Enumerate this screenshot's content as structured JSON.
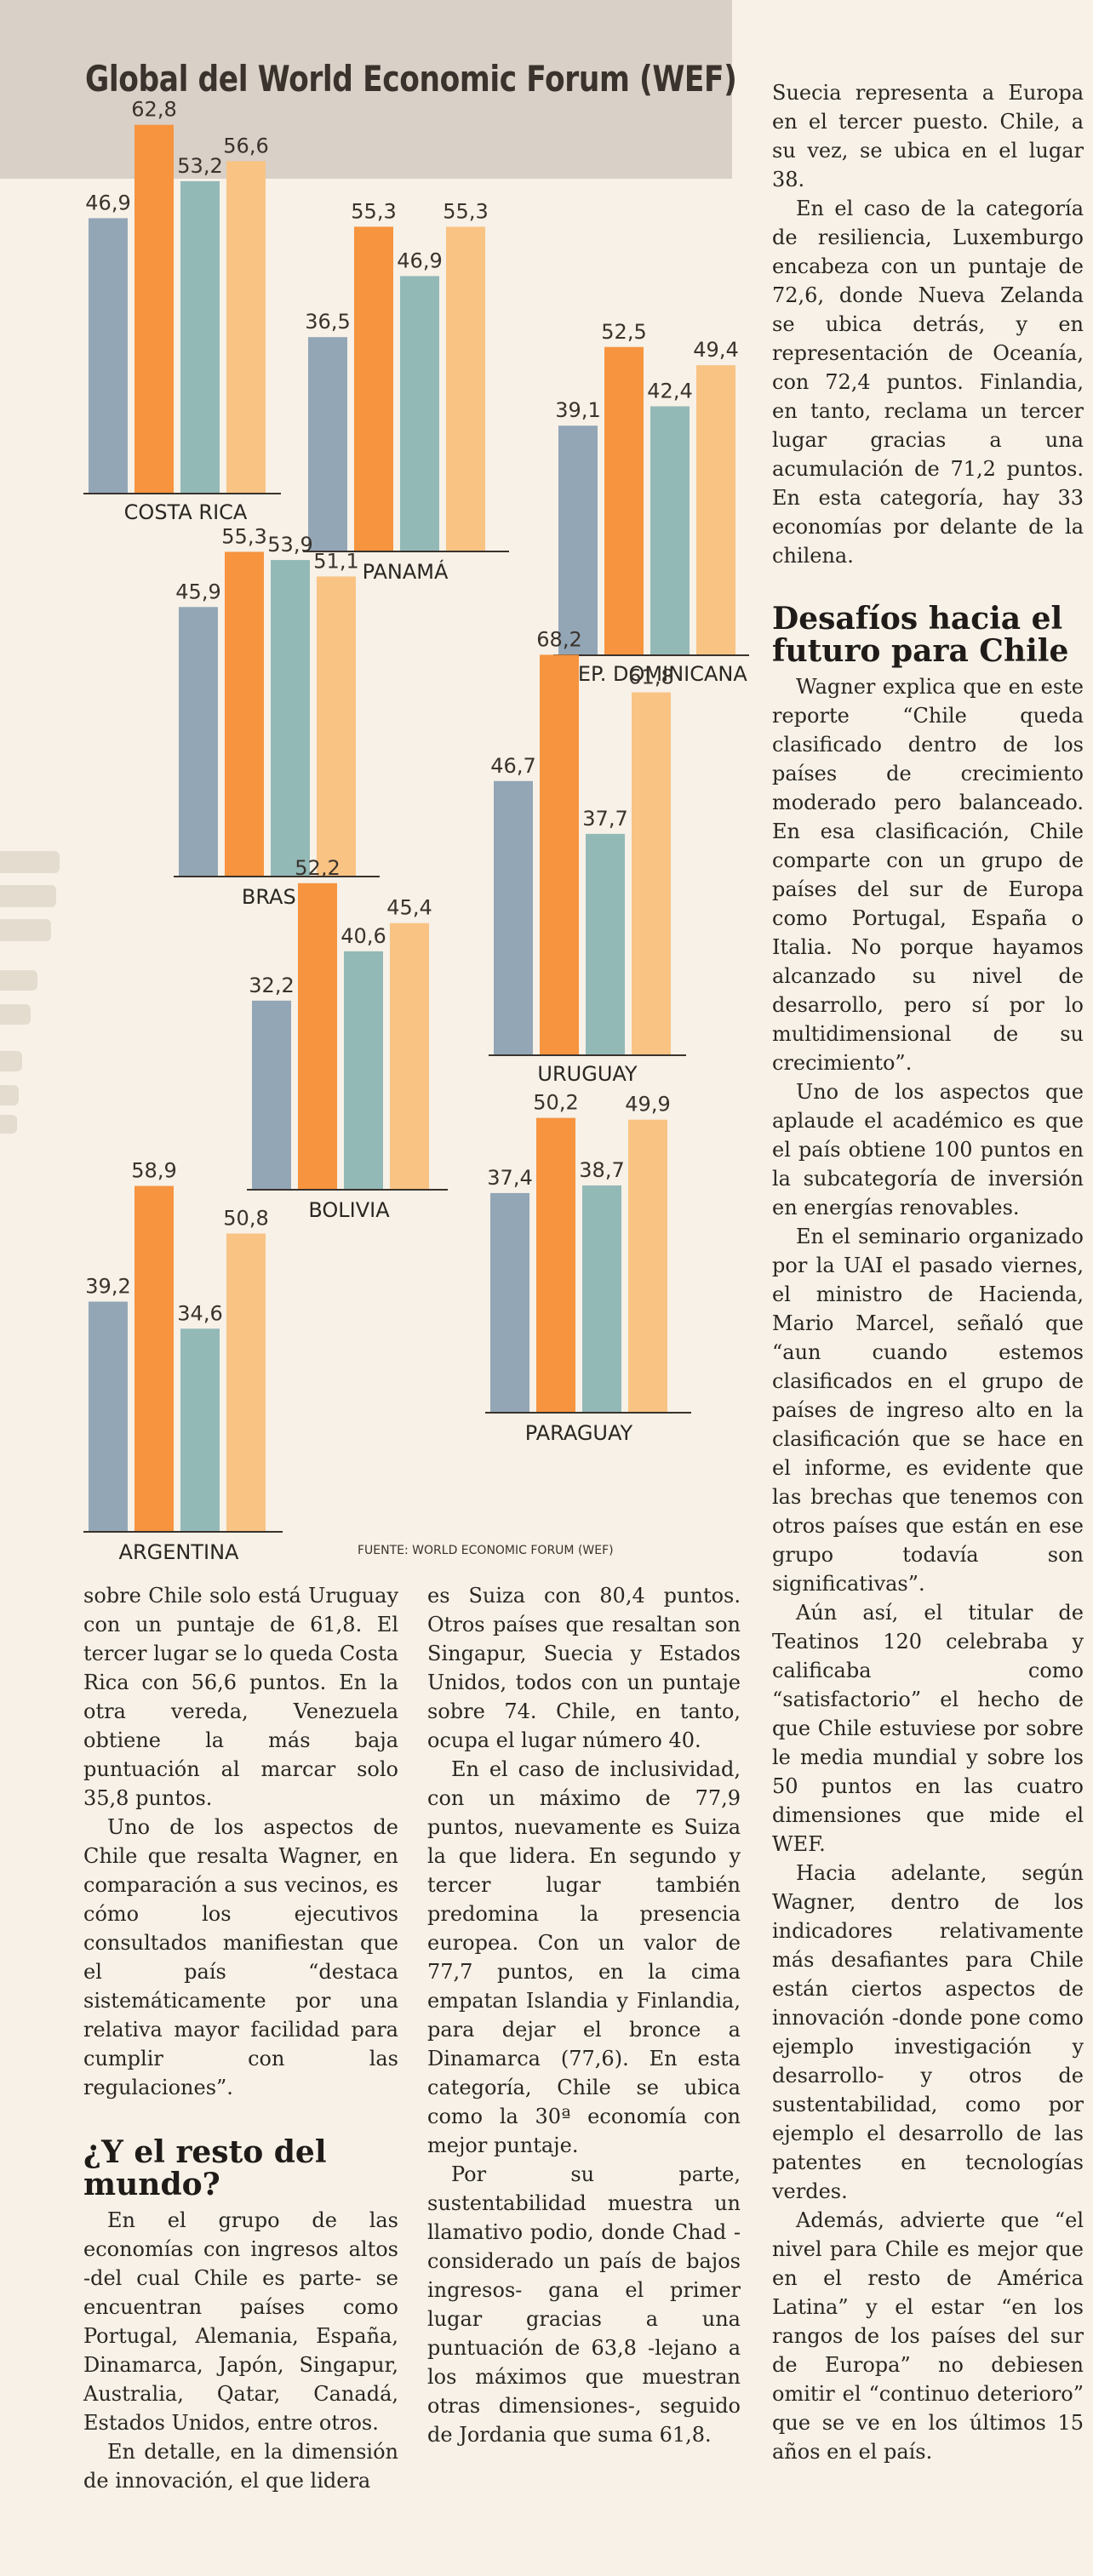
{
  "header": {
    "title": "Global del World Economic Forum (WEF)"
  },
  "colors": {
    "slate": "#93a6b6",
    "orange": "#f6943f",
    "teal": "#93b9b7",
    "peach": "#f9c384"
  },
  "chart_data": {
    "type": "bar",
    "series_count": 4,
    "groups": [
      {
        "label": "COSTA RICA",
        "values": [
          46.9,
          62.8,
          53.2,
          56.6
        ],
        "value_labels": [
          "46,9",
          "62,8",
          "53,2",
          "56,6"
        ]
      },
      {
        "label": "PANAMÁ",
        "values": [
          36.5,
          55.3,
          46.9,
          55.3
        ],
        "value_labels": [
          "36,5",
          "55,3",
          "46,9",
          "55,3"
        ]
      },
      {
        "label": "REP. DOMINICANA",
        "values": [
          39.1,
          52.5,
          42.4,
          49.4
        ],
        "value_labels": [
          "39,1",
          "52,5",
          "42,4",
          "49,4"
        ]
      },
      {
        "label": "BRASIL",
        "values": [
          45.9,
          55.3,
          53.9,
          51.1
        ],
        "value_labels": [
          "45,9",
          "55,3",
          "53,9",
          "51,1"
        ]
      },
      {
        "label": "URUGUAY",
        "values": [
          46.7,
          68.2,
          37.7,
          61.8
        ],
        "value_labels": [
          "46,7",
          "68,2",
          "37,7",
          "61,8"
        ]
      },
      {
        "label": "BOLIVIA",
        "values": [
          32.2,
          52.2,
          40.6,
          45.4
        ],
        "value_labels": [
          "32,2",
          "52,2",
          "40,6",
          "45,4"
        ]
      },
      {
        "label": "ARGENTINA",
        "values": [
          39.2,
          58.9,
          34.6,
          50.8
        ],
        "value_labels": [
          "39,2",
          "58,9",
          "34,6",
          "50,8"
        ]
      },
      {
        "label": "PARAGUAY",
        "values": [
          37.4,
          50.2,
          38.7,
          49.9
        ],
        "value_labels": [
          "37,4",
          "50,2",
          "38,7",
          "49,9"
        ]
      }
    ],
    "source": "FUENTE: WORLD ECONOMIC FORUM (WEF)"
  },
  "col1": {
    "p1": "sobre Chile solo está Uruguay con un puntaje de 61,8. El tercer lugar se lo queda Costa Rica con 56,6 puntos. En la otra vereda, Venezuela obtiene la más baja puntuación al marcar solo 35,8 puntos.",
    "p2": "Uno de los aspectos de Chile que resalta Wagner, en comparación a sus vecinos, es cómo los ejecutivos consultados manifiestan que el país “destaca sistemáticamente por una relativa mayor facilidad para cumplir con las regulaciones”.",
    "h1": "¿Y el resto del mundo?",
    "p3": "En el grupo de las economías con ingresos altos -del cual Chile es parte- se encuentran países como Portugal, Alemania, España, Dinamarca, Japón, Singapur, Australia, Qatar, Canadá, Estados Unidos, entre otros.",
    "p4": "En detalle, en la dimensión de innovación, el que lidera"
  },
  "col2": {
    "p1": "es Suiza con 80,4 puntos. Otros países que resaltan son Singapur, Suecia y Estados Unidos, todos con un puntaje sobre 74. Chile, en tanto, ocupa el lugar número 40.",
    "p2": "En el caso de inclusividad, con un máximo de 77,9 puntos, nuevamente es Suiza la que lidera. En segundo y tercer lugar también predomina la presencia europea. Con un valor de 77,7 puntos, en la cima empatan Islandia y Finlandia, para dejar el bronce a Dinamarca (77,6). En esta categoría, Chile se ubica como la 30ª economía con mejor puntaje.",
    "p3": "Por su parte, sustentabilidad muestra un llamativo podio, donde Chad -considerado un país de bajos ingresos- gana el primer lugar gracias a una puntuación de 63,8 -lejano a los máximos que muestran otras dimensiones-, seguido de Jordania que suma 61,8."
  },
  "col3": {
    "p1": "Suecia representa a Europa en el tercer puesto. Chile, a su vez, se ubica en el lugar 38.",
    "p2": "En el caso de la categoría de resiliencia, Luxemburgo encabeza con un puntaje de 72,6, donde Nueva Zelanda se ubica detrás, y en representación de Oceanía, con 72,4 puntos. Finlandia, en tanto, reclama un tercer lugar gracias a una acumulación de 71,2 puntos. En esta categoría, hay 33 economías por delante de la chilena.",
    "h1": "Desafíos hacia el futuro para Chile",
    "p3": "Wagner explica que en este reporte “Chile queda clasificado dentro de los países de crecimiento moderado pero balanceado. En esa clasificación, Chile comparte con un grupo de países del sur de Europa como Portugal, España o Italia. No porque hayamos alcanzado su nivel de desarrollo, pero sí por lo multidimensional de su crecimiento”.",
    "p4": "Uno de los aspectos que aplaude el académico es que el país obtiene 100 puntos en la subcategoría de inversión en energías renovables.",
    "p5": "En el seminario organizado por la UAI el pasado viernes, el ministro de Hacienda, Mario Marcel, señaló que “aun cuando estemos clasificados en el grupo de países de ingreso alto en la clasificación que se hace en el informe, es evidente que las brechas que tenemos con otros países que están en ese grupo todavía son significativas”.",
    "p6": "Aún así, el titular de Teatinos 120 celebraba y calificaba como “satisfactorio” el hecho de que Chile estuviese por sobre le media mundial y sobre los 50 puntos en las cuatro dimensiones que mide el WEF.",
    "p7": "Hacia adelante, según Wagner, dentro de los indicadores relativamente más desafiantes para Chile están ciertos aspectos de innovación -donde pone como ejemplo investigación y desarrollo- y otros de sustentabilidad, como por ejemplo el desarrollo de las patentes en tecnologías verdes.",
    "p8": "Además, advierte que “el nivel para Chile es mejor que en el resto de América Latina” y el estar “en los rangos de los países del sur de Europa” no debiesen omitir el “continuo deterioro” que se ve en los últimos 15 años en el país."
  }
}
